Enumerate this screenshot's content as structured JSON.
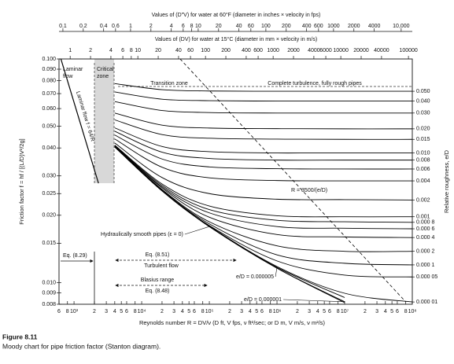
{
  "chart_data": {
    "type": "line",
    "xscale": "log",
    "yscale": "log",
    "color": "#000000",
    "x_label": "Reynolds number R = DV/ν (D ft, V fps, ν ft²/sec; or D m, V m/s, ν m²/s)",
    "y_label": "Friction factor f = hf / [(L/D)V²/2g]",
    "y2_label": "Relative roughness, e/D",
    "figure_number": "Figure 8.11",
    "caption": "Moody chart for pipe friction factor (Stanton diagram).",
    "xlim": [
      600,
      100000000
    ],
    "ylim": [
      0.008,
      0.1
    ],
    "xticks": [
      {
        "value": 600,
        "label": "6"
      },
      {
        "value": 800,
        "label": "8"
      },
      {
        "value": 1000,
        "label": "10³"
      },
      {
        "value": 2000,
        "label": "2"
      },
      {
        "value": 3000,
        "label": "3"
      },
      {
        "value": 4000,
        "label": "4"
      },
      {
        "value": 5000,
        "label": "5"
      },
      {
        "value": 6000,
        "label": "6"
      },
      {
        "value": 8000,
        "label": "8"
      },
      {
        "value": 10000,
        "label": "10⁴"
      },
      {
        "value": 20000,
        "label": "2"
      },
      {
        "value": 30000,
        "label": "3"
      },
      {
        "value": 40000,
        "label": "4"
      },
      {
        "value": 50000,
        "label": "5"
      },
      {
        "value": 60000,
        "label": "6"
      },
      {
        "value": 80000,
        "label": "8"
      },
      {
        "value": 100000,
        "label": "10⁵"
      },
      {
        "value": 200000,
        "label": "2"
      },
      {
        "value": 300000,
        "label": "3"
      },
      {
        "value": 400000,
        "label": "4"
      },
      {
        "value": 500000,
        "label": "5"
      },
      {
        "value": 600000,
        "label": "6"
      },
      {
        "value": 800000,
        "label": "8"
      },
      {
        "value": 1000000,
        "label": "10⁶"
      },
      {
        "value": 2000000,
        "label": "2"
      },
      {
        "value": 3000000,
        "label": "3"
      },
      {
        "value": 4000000,
        "label": "4"
      },
      {
        "value": 5000000,
        "label": "5"
      },
      {
        "value": 6000000,
        "label": "6"
      },
      {
        "value": 8000000,
        "label": "8"
      },
      {
        "value": 10000000,
        "label": "10⁷"
      },
      {
        "value": 20000000,
        "label": "2"
      },
      {
        "value": 30000000,
        "label": "3"
      },
      {
        "value": 40000000,
        "label": "4"
      },
      {
        "value": 50000000,
        "label": "5"
      },
      {
        "value": 60000000,
        "label": "6"
      },
      {
        "value": 80000000,
        "label": "8"
      },
      {
        "value": 100000000,
        "label": "10⁸"
      }
    ],
    "yticks": [
      {
        "value": 0.1,
        "label": "0.100"
      },
      {
        "value": 0.09,
        "label": "0.090"
      },
      {
        "value": 0.08,
        "label": "0.080"
      },
      {
        "value": 0.07,
        "label": "0.070"
      },
      {
        "value": 0.06,
        "label": "0.060"
      },
      {
        "value": 0.05,
        "label": "0.050"
      },
      {
        "value": 0.04,
        "label": "0.040"
      },
      {
        "value": 0.03,
        "label": "0.030"
      },
      0.025,
      {
        "value": 0.02,
        "label": "0.020"
      },
      0.015,
      {
        "value": 0.01,
        "label": "0.010"
      },
      0.009,
      0.008
    ],
    "top_axes": [
      {
        "label": "Values of (D″V) for water at 60°F (diameter in inches × velocity in fps)",
        "xlim": [
          0.0876,
          14600
        ],
        "xticks": [
          0.1,
          0.2,
          0.4,
          0.6,
          1,
          2,
          4,
          6,
          8,
          10,
          20,
          40,
          60,
          100,
          200,
          400,
          600,
          1000,
          2000,
          4000,
          {
            "value": 10000,
            "label": "10,000"
          }
        ]
      },
      {
        "label": "Values of (DV) for water at 15°C (diameter in mm × velocity in m/s)",
        "xlim": [
          0.684,
          114000
        ],
        "xticks": [
          1,
          2,
          4,
          6,
          8,
          10,
          20,
          40,
          60,
          100,
          200,
          400,
          600,
          1000,
          2000,
          4000,
          6000,
          10000,
          20000,
          40000,
          100000
        ]
      }
    ],
    "x": [
      4000,
      20000,
      100000,
      1000000,
      10000000,
      100000000
    ],
    "series": [
      {
        "name": "0.050",
        "values": [
          0.0776,
          0.0729,
          0.0719,
          0.0717,
          0.0717,
          0.0717
        ]
      },
      {
        "name": "0.040",
        "values": [
          0.0712,
          0.0661,
          0.0651,
          0.0648,
          0.0648,
          0.0648
        ]
      },
      {
        "name": "0.030",
        "values": [
          0.0645,
          0.0588,
          0.0576,
          0.0573,
          0.0573,
          0.0573
        ]
      },
      {
        "name": "0.020",
        "values": [
          0.0573,
          0.0506,
          0.0491,
          0.0488,
          0.0487,
          0.0487
        ]
      },
      {
        "name": "0.015",
        "values": [
          0.0534,
          0.0459,
          0.0442,
          0.0438,
          0.0437,
          0.0437
        ]
      },
      {
        "name": "0.010",
        "values": [
          0.0492,
          0.0406,
          0.0385,
          0.038,
          0.038,
          0.038
        ]
      },
      {
        "name": "0.008",
        "values": [
          0.0475,
          0.0383,
          0.0359,
          0.0353,
          0.0353,
          0.0353
        ]
      },
      {
        "name": "0.006",
        "values": [
          0.0457,
          0.0357,
          0.0329,
          0.0323,
          0.0322,
          0.0322
        ]
      },
      {
        "name": "0.004",
        "values": [
          0.0439,
          0.0328,
          0.0294,
          0.0286,
          0.0285,
          0.0285
        ]
      },
      {
        "name": "0.002",
        "values": [
          0.0421,
          0.0295,
          0.025,
          0.0236,
          0.0235,
          0.0234
        ]
      },
      {
        "name": "0.001",
        "values": [
          0.0412,
          0.0276,
          0.022,
          0.0199,
          0.0197,
          0.0197
        ]
      },
      {
        "name": "0.000 8",
        "values": [
          0.041,
          0.0272,
          0.0212,
          0.019,
          0.0187,
          0.0186
        ]
      },
      {
        "name": "0.000 6",
        "values": [
          0.0409,
          0.0268,
          0.0205,
          0.0178,
          0.0175,
          0.0174
        ]
      },
      {
        "name": "0.000 4",
        "values": [
          0.0407,
          0.0265,
          0.0196,
          0.0164,
          0.016,
          0.0159
        ]
      },
      {
        "name": "0.000 2",
        "values": [
          0.0406,
          0.0261,
          0.0187,
          0.0146,
          0.0138,
          0.0138
        ]
      },
      {
        "name": "0.000 1",
        "values": [
          0.0405,
          0.0259,
          0.0183,
          0.0133,
          0.0122,
          0.012
        ]
      },
      {
        "name": "0.000 05",
        "values": [
          0.0404,
          0.0258,
          0.018,
          0.0125,
          0.0108,
          0.0106
        ]
      },
      {
        "name": "0.000 01",
        "values": [
          0.0404,
          0.0258,
          0.0179,
          0.0118,
          0.00896,
          0.00819
        ]
      }
    ],
    "curves": [
      {
        "name": "Hydraulically smooth pipes (ε = 0)",
        "values": [
          0.0404,
          0.0257,
          0.0178,
          0.0116,
          0.00813,
          null
        ]
      },
      {
        "name": "e/D = 0.000005",
        "values": [
          0.0404,
          0.0257,
          0.0178,
          0.0117,
          0.00857,
          null
        ]
      },
      {
        "name": "e/D = 0.000001",
        "values": [
          0.0404,
          0.0257,
          0.0178,
          0.0116,
          0.00821,
          null
        ]
      }
    ],
    "laminar": {
      "name": "Laminar flow f = 64/R",
      "x": [
        640,
        2300
      ],
      "values": [
        0.1,
        0.0278
      ]
    },
    "boundary": {
      "name": "R = 3500/(e/D)",
      "x": [
        37000,
        80000000
      ],
      "values": [
        0.1,
        0.0082
      ]
    },
    "annotations": [
      "Laminar",
      "flow",
      "Critical",
      "zone",
      "Transition zone",
      "Complete turbulence, fully rough pipes",
      "Eq. (8.29)",
      "Eq. (8.51)",
      "Turbulent flow",
      "Blasius range",
      "Eq. (8.48)"
    ]
  }
}
